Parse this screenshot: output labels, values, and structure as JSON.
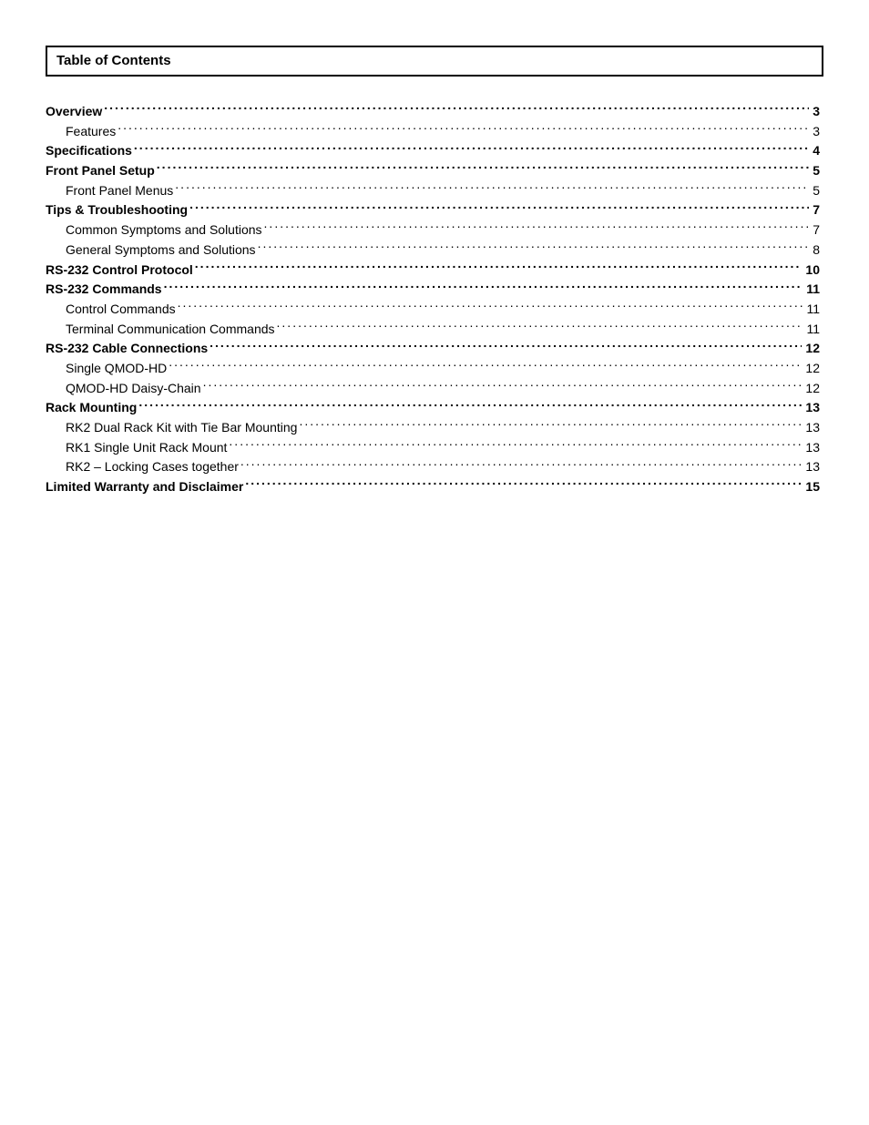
{
  "header": {
    "title": "Table of Contents"
  },
  "toc": [
    {
      "label": "Overview",
      "page": "3",
      "level": 0
    },
    {
      "label": "Features",
      "page": "3",
      "level": 1
    },
    {
      "label": "Specifications",
      "page": "4",
      "level": 0
    },
    {
      "label": "Front Panel Setup",
      "page": "5",
      "level": 0
    },
    {
      "label": "Front Panel Menus",
      "page": "5",
      "level": 1
    },
    {
      "label": "Tips & Troubleshooting",
      "page": "7",
      "level": 0
    },
    {
      "label": "Common Symptoms and Solutions",
      "page": "7",
      "level": 1
    },
    {
      "label": "General Symptoms and Solutions",
      "page": "8",
      "level": 1
    },
    {
      "label": "RS-232 Control Protocol",
      "page": "10",
      "level": 0
    },
    {
      "label": "RS-232 Commands",
      "page": "11",
      "level": 0
    },
    {
      "label": "Control Commands",
      "page": "11",
      "level": 1
    },
    {
      "label": "Terminal Communication Commands",
      "page": "11",
      "level": 1
    },
    {
      "label": "RS-232 Cable Connections",
      "page": "12",
      "level": 0
    },
    {
      "label": "Single QMOD-HD",
      "page": "12",
      "level": 1
    },
    {
      "label": "QMOD-HD Daisy-Chain",
      "page": "12",
      "level": 1
    },
    {
      "label": "Rack Mounting",
      "page": "13",
      "level": 0
    },
    {
      "label": "RK2 Dual Rack Kit with Tie Bar Mounting",
      "page": "13",
      "level": 1
    },
    {
      "label": "RK1 Single Unit Rack Mount",
      "page": "13",
      "level": 1
    },
    {
      "label": "RK2 – Locking Cases together",
      "page": "13",
      "level": 1
    },
    {
      "label": "Limited Warranty and Disclaimer",
      "page": "15",
      "level": 0
    }
  ]
}
